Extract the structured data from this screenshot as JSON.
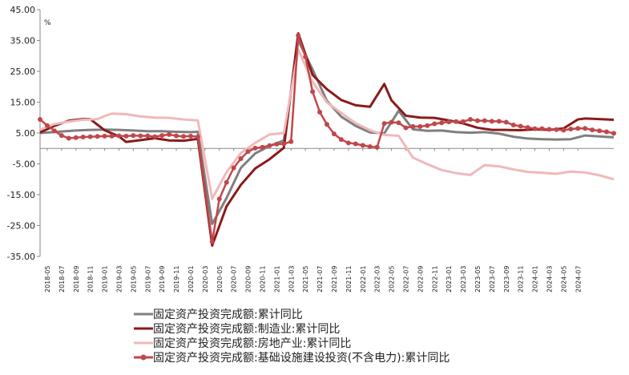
{
  "chart_data": {
    "type": "line",
    "unit_label": "%",
    "ylim": [
      -35,
      45
    ],
    "yticks": [
      "45.00",
      "35.00",
      "25.00",
      "15.00",
      "5.00",
      "-5.00",
      "-15.00",
      "-25.00",
      "-35.00"
    ],
    "x_tick_labels": [
      "2018-05",
      "2018-07",
      "2018-09",
      "2018-11",
      "2019-01",
      "2019-03",
      "2019-05",
      "2019-07",
      "2019-09",
      "2019-11",
      "2020-01",
      "2020-03",
      "2020-05",
      "2020-07",
      "2020-09",
      "2020-11",
      "2021-01",
      "2021-03",
      "2021-05",
      "2021-07",
      "2021-09",
      "2021-11",
      "2022-01",
      "2022-03",
      "2022-05",
      "2022-07",
      "2022-09",
      "2022-11",
      "2023-01",
      "2023-03",
      "2023-05",
      "2023-07",
      "2023-09",
      "2023-11",
      "2024-01",
      "2024-03",
      "2024-05",
      "2024-07"
    ],
    "grid": false,
    "legend_position": "bottom",
    "series": [
      {
        "name": "固定资产投资完成额:累计同比",
        "color": "#7f7f7f",
        "marker": false,
        "points": [
          [
            0,
            5.0
          ],
          [
            3,
            5.5
          ],
          [
            5,
            5.8
          ],
          [
            7,
            6.0
          ],
          [
            9,
            6.1
          ],
          [
            11,
            6.0
          ],
          [
            13,
            5.8
          ],
          [
            15,
            5.6
          ],
          [
            17,
            5.6
          ],
          [
            19,
            5.4
          ],
          [
            21,
            5.3
          ],
          [
            22,
            5.4
          ],
          [
            24,
            -24.5
          ],
          [
            26,
            -16.1
          ],
          [
            28,
            -6.3
          ],
          [
            30,
            -1.6
          ],
          [
            32,
            0.8
          ],
          [
            34,
            2.6
          ],
          [
            36,
            35.0
          ],
          [
            38,
            25.6
          ],
          [
            40,
            15.4
          ],
          [
            42,
            10.3
          ],
          [
            44,
            7.3
          ],
          [
            46,
            5.2
          ],
          [
            48,
            4.9
          ],
          [
            50,
            12.2
          ],
          [
            52,
            6.2
          ],
          [
            54,
            5.7
          ],
          [
            56,
            5.8
          ],
          [
            58,
            5.3
          ],
          [
            60,
            5.1
          ],
          [
            62,
            5.3
          ],
          [
            64,
            4.8
          ],
          [
            66,
            3.8
          ],
          [
            68,
            3.2
          ],
          [
            70,
            3.0
          ],
          [
            72,
            2.9
          ],
          [
            74,
            3.0
          ],
          [
            76,
            4.2
          ],
          [
            78,
            3.9
          ],
          [
            80,
            3.6
          ]
        ]
      },
      {
        "name": "固定资产投资完成额:制造业:累计同比",
        "color": "#8b1a1a",
        "marker": false,
        "points": [
          [
            0,
            5.2
          ],
          [
            2,
            7.3
          ],
          [
            4,
            9.0
          ],
          [
            6,
            9.5
          ],
          [
            7,
            9.5
          ],
          [
            9,
            5.9
          ],
          [
            11,
            3.9
          ],
          [
            12,
            2.1
          ],
          [
            14,
            2.7
          ],
          [
            16,
            3.3
          ],
          [
            18,
            2.6
          ],
          [
            20,
            2.5
          ],
          [
            22,
            3.1
          ],
          [
            24,
            -31.5
          ],
          [
            26,
            -18.8
          ],
          [
            28,
            -11.8
          ],
          [
            30,
            -6.5
          ],
          [
            32,
            -3.5
          ],
          [
            34,
            0.2
          ],
          [
            36,
            37.3
          ],
          [
            38,
            23.8
          ],
          [
            40,
            19.2
          ],
          [
            42,
            15.7
          ],
          [
            44,
            14.0
          ],
          [
            46,
            13.5
          ],
          [
            48,
            20.9
          ],
          [
            49,
            15.6
          ],
          [
            51,
            10.6
          ],
          [
            53,
            10.0
          ],
          [
            55,
            9.9
          ],
          [
            57,
            9.1
          ],
          [
            59,
            8.1
          ],
          [
            61,
            6.7
          ],
          [
            63,
            6.0
          ],
          [
            65,
            6.0
          ],
          [
            67,
            5.9
          ],
          [
            69,
            6.2
          ],
          [
            71,
            6.0
          ],
          [
            73,
            6.5
          ],
          [
            75,
            9.4
          ],
          [
            76,
            9.7
          ],
          [
            78,
            9.5
          ],
          [
            80,
            9.3
          ]
        ]
      },
      {
        "name": "固定资产投资完成额:房地产业:累计同比",
        "color": "#f0b9b9",
        "marker": false,
        "points": [
          [
            0,
            6.1
          ],
          [
            2,
            7.9
          ],
          [
            4,
            8.7
          ],
          [
            6,
            9.3
          ],
          [
            8,
            9.5
          ],
          [
            9,
            10.5
          ],
          [
            10,
            11.3
          ],
          [
            12,
            11.1
          ],
          [
            14,
            10.4
          ],
          [
            16,
            10.0
          ],
          [
            18,
            9.9
          ],
          [
            20,
            9.4
          ],
          [
            22,
            9.1
          ],
          [
            24,
            -16.3
          ],
          [
            26,
            -7.7
          ],
          [
            28,
            -1.5
          ],
          [
            30,
            1.8
          ],
          [
            32,
            4.5
          ],
          [
            34,
            5.0
          ],
          [
            36,
            32.0
          ],
          [
            38,
            21.6
          ],
          [
            40,
            14.9
          ],
          [
            42,
            11.5
          ],
          [
            44,
            8.2
          ],
          [
            46,
            5.9
          ],
          [
            48,
            4.4
          ],
          [
            50,
            4.1
          ],
          [
            52,
            -3.0
          ],
          [
            54,
            -5.1
          ],
          [
            56,
            -7.0
          ],
          [
            58,
            -8.0
          ],
          [
            60,
            -8.6
          ],
          [
            61,
            -7.0
          ],
          [
            62,
            -5.4
          ],
          [
            64,
            -5.8
          ],
          [
            66,
            -6.8
          ],
          [
            68,
            -7.6
          ],
          [
            70,
            -7.9
          ],
          [
            72,
            -8.2
          ],
          [
            74,
            -7.5
          ],
          [
            76,
            -7.8
          ],
          [
            78,
            -8.7
          ],
          [
            80,
            -10.0
          ]
        ]
      },
      {
        "name": "固定资产投资完成额:基础设施建设投资(不含电力):累计同比",
        "color": "#c0474b",
        "marker": true,
        "points": [
          [
            0,
            9.4
          ],
          [
            1,
            7.4
          ],
          [
            2,
            5.7
          ],
          [
            3,
            4.2
          ],
          [
            4,
            3.3
          ],
          [
            5,
            3.5
          ],
          [
            6,
            3.7
          ],
          [
            7,
            3.8
          ],
          [
            8,
            3.9
          ],
          [
            9,
            4.0
          ],
          [
            10,
            4.0
          ],
          [
            11,
            4.1
          ],
          [
            12,
            4.0
          ],
          [
            13,
            4.2
          ],
          [
            14,
            4.1
          ],
          [
            15,
            4.1
          ],
          [
            16,
            3.8
          ],
          [
            17,
            4.2
          ],
          [
            18,
            4.5
          ],
          [
            19,
            4.1
          ],
          [
            20,
            3.9
          ],
          [
            21,
            4.0
          ],
          [
            22,
            3.8
          ],
          [
            24,
            -30.3
          ],
          [
            25,
            -16.4
          ],
          [
            26,
            -11.0
          ],
          [
            27,
            -6.3
          ],
          [
            28,
            -3.3
          ],
          [
            29,
            -1.0
          ],
          [
            30,
            0.1
          ],
          [
            31,
            0.4
          ],
          [
            32,
            0.9
          ],
          [
            33,
            1.4
          ],
          [
            34,
            1.5
          ],
          [
            35,
            2.2
          ],
          [
            36,
            36.6
          ],
          [
            37,
            29.7
          ],
          [
            38,
            18.4
          ],
          [
            39,
            11.8
          ],
          [
            40,
            7.8
          ],
          [
            41,
            4.7
          ],
          [
            42,
            2.9
          ],
          [
            43,
            1.8
          ],
          [
            44,
            1.5
          ],
          [
            45,
            1.0
          ],
          [
            46,
            0.6
          ],
          [
            47,
            0.4
          ],
          [
            48,
            8.1
          ],
          [
            49,
            8.5
          ],
          [
            50,
            8.3
          ],
          [
            51,
            6.7
          ],
          [
            52,
            7.1
          ],
          [
            53,
            7.1
          ],
          [
            54,
            7.4
          ],
          [
            55,
            8.0
          ],
          [
            56,
            8.3
          ],
          [
            57,
            8.6
          ],
          [
            58,
            8.7
          ],
          [
            59,
            8.7
          ],
          [
            60,
            9.4
          ],
          [
            61,
            9.0
          ],
          [
            62,
            9.0
          ],
          [
            63,
            8.8
          ],
          [
            64,
            8.8
          ],
          [
            65,
            8.5
          ],
          [
            66,
            7.6
          ],
          [
            67,
            7.2
          ],
          [
            68,
            6.8
          ],
          [
            69,
            6.4
          ],
          [
            70,
            6.4
          ],
          [
            71,
            6.2
          ],
          [
            72,
            6.1
          ],
          [
            73,
            5.9
          ],
          [
            74,
            6.3
          ],
          [
            75,
            6.5
          ],
          [
            76,
            6.5
          ],
          [
            77,
            6.0
          ],
          [
            78,
            5.7
          ],
          [
            79,
            5.4
          ],
          [
            80,
            4.9
          ]
        ]
      }
    ]
  }
}
